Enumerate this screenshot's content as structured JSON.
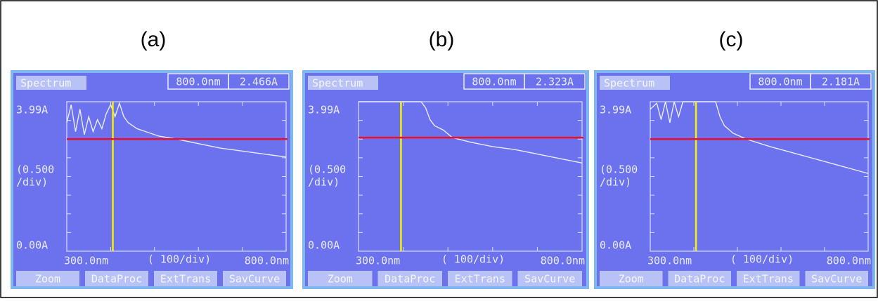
{
  "panels": [
    {
      "label": "(a)",
      "screen": {
        "title": "Spectrum",
        "wavelength": "800.0nm",
        "absorbance": "2.466A",
        "y_top": "3.99A",
        "y_scale": [
          "(0.500",
          "/div)"
        ],
        "y_bottom": "0.00A",
        "x_start": "300.0nm",
        "x_scale": "( 100/div)",
        "x_end": "800.0nm",
        "buttons": [
          "Zoom",
          "DataProc",
          "ExtTrans",
          "SavCurve"
        ]
      }
    },
    {
      "label": "(b)",
      "screen": {
        "title": "Spectrum",
        "wavelength": "800.0nm",
        "absorbance": "2.323A",
        "y_top": "3.99A",
        "y_scale": [
          "(0.500",
          "/div)"
        ],
        "y_bottom": "0.00A",
        "x_start": "300.0nm",
        "x_scale": "( 100/div)",
        "x_end": "800.0nm",
        "buttons": [
          "Zoom",
          "DataProc",
          "ExtTrans",
          "SavCurve"
        ]
      }
    },
    {
      "label": "(c)",
      "screen": {
        "title": "Spectrum",
        "wavelength": "800.0nm",
        "absorbance": "2.181A",
        "y_top": "3.99A",
        "y_scale": [
          "(0.500",
          "/div)"
        ],
        "y_bottom": "0.00A",
        "x_start": "300.0nm",
        "x_scale": "( 100/div)",
        "x_end": "800.0nm",
        "buttons": [
          "Zoom",
          "DataProc",
          "ExtTrans",
          "SavCurve"
        ]
      }
    }
  ]
}
